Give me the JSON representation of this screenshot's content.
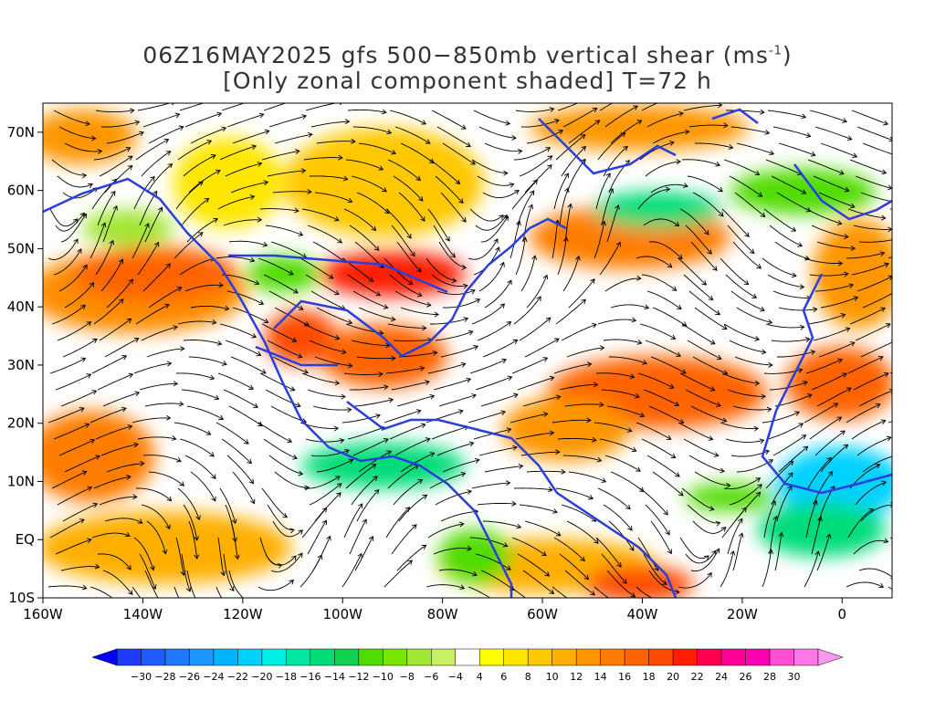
{
  "title": {
    "line1": "06Z16MAY2025 gfs 500−850mb vertical shear (ms",
    "unit_exp": "-1",
    "line1_end": ")",
    "line2": "[Only zonal component shaded] T=72 h"
  },
  "map": {
    "lon_min": -160,
    "lon_max": 10,
    "lat_min": -10,
    "lat_max": 75,
    "lat_ticks": [
      {
        "value": 70,
        "label": "70N"
      },
      {
        "value": 60,
        "label": "60N"
      },
      {
        "value": 50,
        "label": "50N"
      },
      {
        "value": 40,
        "label": "40N"
      },
      {
        "value": 30,
        "label": "30N"
      },
      {
        "value": 20,
        "label": "20N"
      },
      {
        "value": 10,
        "label": "10N"
      },
      {
        "value": 0,
        "label": "EQ"
      },
      {
        "value": -10,
        "label": "10S"
      }
    ],
    "lon_ticks": [
      {
        "value": -160,
        "label": "160W"
      },
      {
        "value": -140,
        "label": "140W"
      },
      {
        "value": -120,
        "label": "120W"
      },
      {
        "value": -100,
        "label": "100W"
      },
      {
        "value": -80,
        "label": "80W"
      },
      {
        "value": -60,
        "label": "60W"
      },
      {
        "value": -40,
        "label": "40W"
      },
      {
        "value": -20,
        "label": "20W"
      },
      {
        "value": 0,
        "label": "0"
      }
    ],
    "coastline_color": "#2a3ee0",
    "streamline_color": "#000000"
  },
  "colorbar": {
    "labels": [
      "-30",
      "-28",
      "-26",
      "-24",
      "-22",
      "-20",
      "-18",
      "-16",
      "-14",
      "-12",
      "-10",
      "-8",
      "-6",
      "-4",
      "4",
      "6",
      "8",
      "10",
      "12",
      "14",
      "16",
      "18",
      "20",
      "22",
      "24",
      "26",
      "28",
      "30"
    ],
    "colors": [
      "#1e3cff",
      "#1e5aff",
      "#1e78ff",
      "#1e96ff",
      "#00b4ff",
      "#00d2ff",
      "#00f0e6",
      "#00e6a0",
      "#00dc78",
      "#10d050",
      "#50dc00",
      "#78e600",
      "#a0e632",
      "#c8f064",
      "#ffffff",
      "#ffff00",
      "#ffe600",
      "#ffc800",
      "#ffaf00",
      "#ff9600",
      "#ff7d00",
      "#ff6400",
      "#ff4b00",
      "#ff1e00",
      "#ff0050",
      "#ff0096",
      "#ff00b4",
      "#ff50d2",
      "#ff78e6"
    ]
  }
}
